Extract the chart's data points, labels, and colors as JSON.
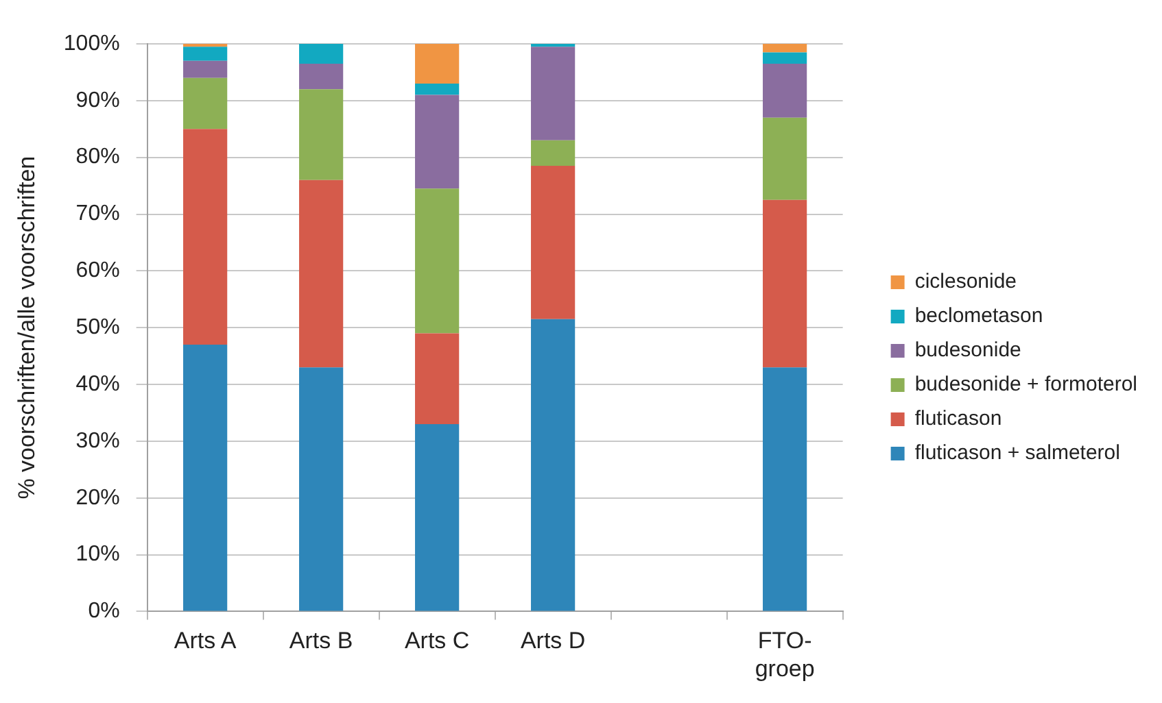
{
  "chart_data": {
    "type": "bar",
    "stacked": true,
    "ylabel": "% voorschriften/alle voorschriften",
    "categories": [
      "Arts A",
      "Arts B",
      "Arts C",
      "Arts D",
      null,
      "FTO-groep"
    ],
    "series": [
      {
        "name": "fluticason + salmeterol",
        "color": "#2e86b9",
        "values": [
          47,
          43,
          33,
          51.5,
          null,
          43
        ]
      },
      {
        "name": "fluticason",
        "color": "#d55b4b",
        "values": [
          38,
          33,
          16,
          27,
          null,
          29.5
        ]
      },
      {
        "name": "budesonide + formoterol",
        "color": "#8db055",
        "values": [
          9,
          16,
          25.5,
          4.5,
          null,
          14.5
        ]
      },
      {
        "name": "budesonide",
        "color": "#8a6d9f",
        "values": [
          3,
          4.5,
          16.5,
          16.5,
          null,
          9.5
        ]
      },
      {
        "name": "beclometason",
        "color": "#12a9c1",
        "values": [
          2.5,
          3.5,
          2,
          0.5,
          null,
          2
        ]
      },
      {
        "name": "ciclesonide",
        "color": "#f09543",
        "values": [
          0.5,
          0,
          7,
          0,
          null,
          1.5
        ]
      }
    ],
    "ylim": [
      0,
      100
    ],
    "yticks": [
      {
        "value": 0,
        "label": "0%"
      },
      {
        "value": 10,
        "label": "10%"
      },
      {
        "value": 20,
        "label": "20%"
      },
      {
        "value": 30,
        "label": "30%"
      },
      {
        "value": 40,
        "label": "40%"
      },
      {
        "value": 50,
        "label": "50%"
      },
      {
        "value": 60,
        "label": "60%"
      },
      {
        "value": 70,
        "label": "70%"
      },
      {
        "value": 80,
        "label": "80%"
      },
      {
        "value": 90,
        "label": "90%"
      },
      {
        "value": 100,
        "label": "100%"
      }
    ],
    "grid": "y",
    "legend": "right"
  }
}
